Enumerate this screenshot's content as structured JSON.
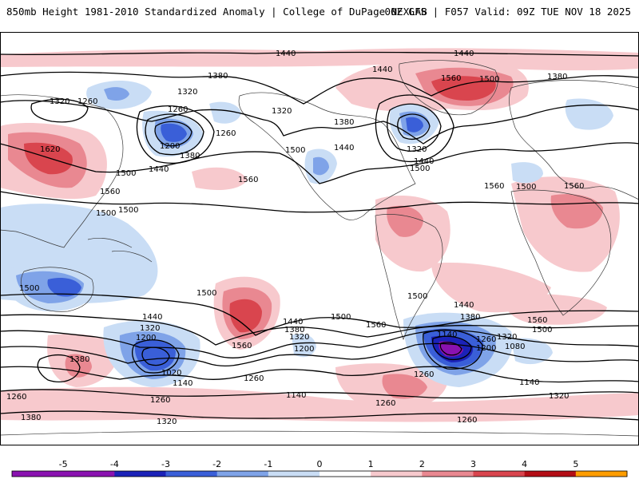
{
  "header": {
    "left": "850mb Height 1981-2010 Standardized Anomaly | College of DuPage NEXLAB",
    "right": "00Z GFS | F057 Valid: 09Z TUE NOV 18 2025"
  },
  "colors": {
    "pos1": "#f7c9cd",
    "pos2": "#e98891",
    "pos3": "#d9454e",
    "pos4": "#b30e16",
    "pos5": "#ff9d00",
    "neg1": "#c9ddf5",
    "neg2": "#7fa3e8",
    "neg3": "#3a5fd8",
    "neg4": "#1b22b8",
    "neg5": "#8a12b0",
    "land": "#333333",
    "contour": "#000000"
  },
  "contour_labels": [
    {
      "text": "1440"
    },
    {
      "text": "1440"
    },
    {
      "text": "1380"
    },
    {
      "text": "1320"
    },
    {
      "text": "1320"
    },
    {
      "text": "1260"
    },
    {
      "text": "1260"
    },
    {
      "text": "1320"
    },
    {
      "text": "1200"
    },
    {
      "text": "1380"
    },
    {
      "text": "1440"
    },
    {
      "text": "1260"
    },
    {
      "text": "1620"
    },
    {
      "text": "1500"
    },
    {
      "text": "1560"
    },
    {
      "text": "1500"
    },
    {
      "text": "1560"
    },
    {
      "text": "1500"
    },
    {
      "text": "1440"
    },
    {
      "text": "1380"
    },
    {
      "text": "1440"
    },
    {
      "text": "1560"
    },
    {
      "text": "1500"
    },
    {
      "text": "1380"
    },
    {
      "text": "1320"
    },
    {
      "text": "1440"
    },
    {
      "text": "1500"
    },
    {
      "text": "1560"
    },
    {
      "text": "1500"
    },
    {
      "text": "1560"
    },
    {
      "text": "1500"
    },
    {
      "text": "1500"
    },
    {
      "text": "1500"
    },
    {
      "text": "1440"
    },
    {
      "text": "1320"
    },
    {
      "text": "1200"
    },
    {
      "text": "1020"
    },
    {
      "text": "1140"
    },
    {
      "text": "1380"
    },
    {
      "text": "1260"
    },
    {
      "text": "1260"
    },
    {
      "text": "1380"
    },
    {
      "text": "1320"
    },
    {
      "text": "1560"
    },
    {
      "text": "1440"
    },
    {
      "text": "1380"
    },
    {
      "text": "1320"
    },
    {
      "text": "1200"
    },
    {
      "text": "1500"
    },
    {
      "text": "1560"
    },
    {
      "text": "1260"
    },
    {
      "text": "1140"
    },
    {
      "text": "1260"
    },
    {
      "text": "1440"
    },
    {
      "text": "1380"
    },
    {
      "text": "1140"
    },
    {
      "text": "1260"
    },
    {
      "text": "1200"
    },
    {
      "text": "1320"
    },
    {
      "text": "1080"
    },
    {
      "text": "1560"
    },
    {
      "text": "1500"
    },
    {
      "text": "1260"
    },
    {
      "text": "1140"
    },
    {
      "text": "1320"
    },
    {
      "text": "1260"
    },
    {
      "text": "1500"
    }
  ],
  "legend": {
    "ticks": [
      "-5",
      "-4",
      "-3",
      "-2",
      "-1",
      "0",
      "1",
      "2",
      "3",
      "4",
      "5"
    ]
  }
}
